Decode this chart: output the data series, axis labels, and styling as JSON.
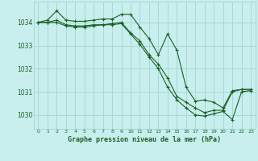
{
  "title": "Graphe pression niveau de la mer (hPa)",
  "background_color": "#c8eeee",
  "grid_color": "#a8d8d8",
  "line_color": "#1a6020",
  "xlim": [
    -0.5,
    23.5
  ],
  "ylim": [
    1029.4,
    1034.9
  ],
  "yticks": [
    1030,
    1031,
    1032,
    1033,
    1034
  ],
  "xticks": [
    0,
    1,
    2,
    3,
    4,
    5,
    6,
    7,
    8,
    9,
    10,
    11,
    12,
    13,
    14,
    15,
    16,
    17,
    18,
    19,
    20,
    21,
    22,
    23
  ],
  "line1_x": [
    0,
    1,
    2,
    3,
    4,
    5,
    6,
    7,
    8,
    9,
    10,
    11,
    12,
    13,
    14,
    15,
    16,
    17,
    18,
    19,
    20,
    21,
    22,
    23
  ],
  "line1_y": [
    1034.0,
    1034.1,
    1034.5,
    1034.1,
    1034.05,
    1034.05,
    1034.1,
    1034.15,
    1034.15,
    1034.35,
    1034.35,
    1033.8,
    1033.3,
    1032.6,
    1033.5,
    1032.8,
    1031.2,
    1030.6,
    1030.65,
    1030.55,
    1030.3,
    1031.05,
    1031.1,
    1031.1
  ],
  "line2_x": [
    0,
    1,
    2,
    3,
    4,
    5,
    6,
    7,
    8,
    9,
    10,
    11,
    12,
    13,
    14,
    15,
    16,
    17,
    18,
    19,
    20,
    21,
    22,
    23
  ],
  "line2_y": [
    1034.0,
    1034.0,
    1034.1,
    1033.9,
    1033.85,
    1033.85,
    1033.9,
    1033.9,
    1033.95,
    1034.0,
    1033.55,
    1033.2,
    1032.6,
    1032.2,
    1031.6,
    1030.8,
    1030.55,
    1030.3,
    1030.1,
    1030.2,
    1030.2,
    1031.0,
    1031.1,
    1031.1
  ],
  "line3_x": [
    0,
    1,
    2,
    3,
    4,
    5,
    6,
    7,
    8,
    9,
    10,
    11,
    12,
    13,
    14,
    15,
    16,
    17,
    18,
    19,
    20,
    21,
    22,
    23
  ],
  "line3_y": [
    1034.0,
    1034.0,
    1034.0,
    1033.85,
    1033.8,
    1033.8,
    1033.85,
    1033.9,
    1033.9,
    1033.95,
    1033.5,
    1033.05,
    1032.5,
    1032.0,
    1031.2,
    1030.65,
    1030.3,
    1030.0,
    1029.95,
    1030.05,
    1030.15,
    1029.8,
    1031.0,
    1031.05
  ]
}
